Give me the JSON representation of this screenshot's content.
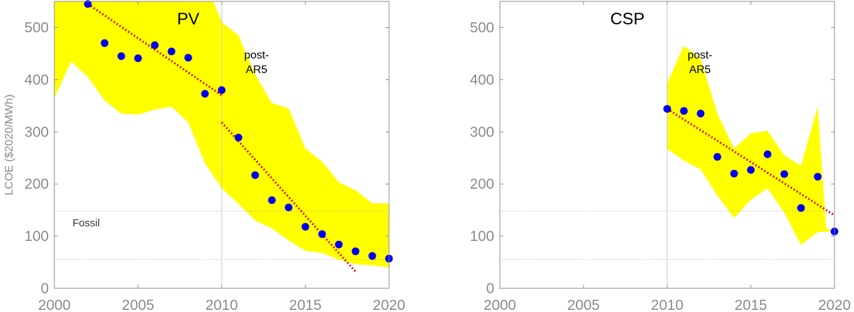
{
  "colors": {
    "band": "#ffff00",
    "points": "#0000ee",
    "trend": "#dd0000",
    "axis": "#8a8a8a"
  },
  "y_axis_label": "LCOE ($2020/MWh)",
  "fossil_label": "Fossil",
  "chart_data": [
    {
      "type": "scatter",
      "title": "PV",
      "annotation": "post-\nAR5",
      "xlim": [
        2000,
        2020
      ],
      "ylim": [
        0,
        550
      ],
      "x_ticks": [
        2000,
        2005,
        2010,
        2015,
        2020
      ],
      "y_ticks": [
        0,
        100,
        200,
        300,
        400,
        500
      ],
      "ylabel": "LCOE ($2020/MWh)",
      "vline": 2010,
      "fossil_band": [
        55,
        148
      ],
      "points": [
        {
          "x": 2002,
          "y": 545
        },
        {
          "x": 2003,
          "y": 470
        },
        {
          "x": 2004,
          "y": 445
        },
        {
          "x": 2005,
          "y": 441
        },
        {
          "x": 2006,
          "y": 466
        },
        {
          "x": 2007,
          "y": 454
        },
        {
          "x": 2008,
          "y": 442
        },
        {
          "x": 2009,
          "y": 373
        },
        {
          "x": 2010,
          "y": 380
        },
        {
          "x": 2011,
          "y": 289
        },
        {
          "x": 2012,
          "y": 217
        },
        {
          "x": 2013,
          "y": 169
        },
        {
          "x": 2014,
          "y": 155
        },
        {
          "x": 2015,
          "y": 118
        },
        {
          "x": 2016,
          "y": 104
        },
        {
          "x": 2017,
          "y": 84
        },
        {
          "x": 2018,
          "y": 71
        },
        {
          "x": 2019,
          "y": 62
        },
        {
          "x": 2020,
          "y": 57
        }
      ],
      "band_upper": [
        {
          "x": 2000,
          "y": 550
        },
        {
          "x": 2009.5,
          "y": 550
        },
        {
          "x": 2010,
          "y": 510
        },
        {
          "x": 2011,
          "y": 485
        },
        {
          "x": 2012,
          "y": 410
        },
        {
          "x": 2013,
          "y": 355
        },
        {
          "x": 2014,
          "y": 345
        },
        {
          "x": 2015,
          "y": 268
        },
        {
          "x": 2016,
          "y": 243
        },
        {
          "x": 2017,
          "y": 203
        },
        {
          "x": 2018,
          "y": 188
        },
        {
          "x": 2019,
          "y": 163
        },
        {
          "x": 2020,
          "y": 163
        }
      ],
      "band_lower": [
        {
          "x": 2000,
          "y": 365
        },
        {
          "x": 2001,
          "y": 435
        },
        {
          "x": 2002,
          "y": 405
        },
        {
          "x": 2003,
          "y": 360
        },
        {
          "x": 2004,
          "y": 335
        },
        {
          "x": 2005,
          "y": 333
        },
        {
          "x": 2006,
          "y": 343
        },
        {
          "x": 2007,
          "y": 348
        },
        {
          "x": 2008,
          "y": 318
        },
        {
          "x": 2009,
          "y": 240
        },
        {
          "x": 2010,
          "y": 192
        },
        {
          "x": 2011,
          "y": 162
        },
        {
          "x": 2012,
          "y": 130
        },
        {
          "x": 2013,
          "y": 115
        },
        {
          "x": 2014,
          "y": 92
        },
        {
          "x": 2015,
          "y": 72
        },
        {
          "x": 2016,
          "y": 68
        },
        {
          "x": 2017,
          "y": 55
        },
        {
          "x": 2018,
          "y": 46
        },
        {
          "x": 2019,
          "y": 44
        },
        {
          "x": 2020,
          "y": 40
        }
      ],
      "trend_lines": [
        [
          {
            "x": 2002,
            "y": 545
          },
          {
            "x": 2010,
            "y": 370
          }
        ],
        [
          {
            "x": 2010,
            "y": 318
          },
          {
            "x": 2018,
            "y": 32
          }
        ]
      ]
    },
    {
      "type": "scatter",
      "title": "CSP",
      "annotation": "post-\nAR5",
      "xlim": [
        2000,
        2020
      ],
      "ylim": [
        0,
        550
      ],
      "x_ticks": [
        2000,
        2005,
        2010,
        2015,
        2020
      ],
      "y_ticks": [
        0,
        100,
        200,
        300,
        400,
        500
      ],
      "vline": 2010,
      "fossil_band": [
        55,
        148
      ],
      "points": [
        {
          "x": 2010,
          "y": 344
        },
        {
          "x": 2011,
          "y": 340
        },
        {
          "x": 2012,
          "y": 335
        },
        {
          "x": 2013,
          "y": 252
        },
        {
          "x": 2014,
          "y": 220
        },
        {
          "x": 2015,
          "y": 227
        },
        {
          "x": 2016,
          "y": 257
        },
        {
          "x": 2017,
          "y": 219
        },
        {
          "x": 2018,
          "y": 154
        },
        {
          "x": 2019,
          "y": 214
        },
        {
          "x": 2020,
          "y": 109
        }
      ],
      "band_upper": [
        {
          "x": 2010,
          "y": 393
        },
        {
          "x": 2011,
          "y": 465
        },
        {
          "x": 2012,
          "y": 440
        },
        {
          "x": 2013,
          "y": 335
        },
        {
          "x": 2014,
          "y": 268
        },
        {
          "x": 2015,
          "y": 297
        },
        {
          "x": 2016,
          "y": 302
        },
        {
          "x": 2017,
          "y": 255
        },
        {
          "x": 2018,
          "y": 235
        },
        {
          "x": 2019,
          "y": 348
        },
        {
          "x": 2019.5,
          "y": 115
        },
        {
          "x": 2020,
          "y": 109
        }
      ],
      "band_lower": [
        {
          "x": 2010,
          "y": 267
        },
        {
          "x": 2011,
          "y": 245
        },
        {
          "x": 2012,
          "y": 228
        },
        {
          "x": 2013,
          "y": 178
        },
        {
          "x": 2014,
          "y": 135
        },
        {
          "x": 2015,
          "y": 170
        },
        {
          "x": 2016,
          "y": 192
        },
        {
          "x": 2017,
          "y": 145
        },
        {
          "x": 2018,
          "y": 83
        },
        {
          "x": 2019,
          "y": 108
        },
        {
          "x": 2020,
          "y": 109
        }
      ],
      "trend_lines": [
        [
          {
            "x": 2010,
            "y": 344
          },
          {
            "x": 2020,
            "y": 140
          }
        ]
      ]
    }
  ]
}
